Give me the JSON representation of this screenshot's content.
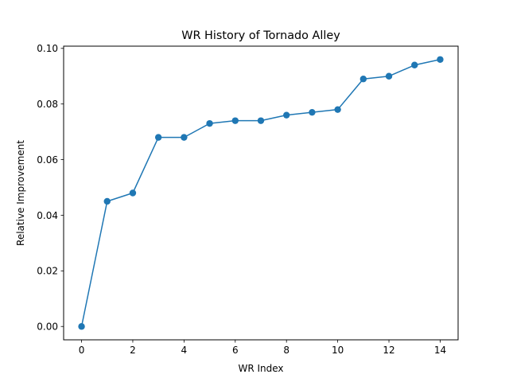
{
  "chart_data": {
    "type": "line",
    "title": "WR History of Tornado Alley",
    "xlabel": "WR Index",
    "ylabel": "Relative Improvement",
    "x": [
      0,
      1,
      2,
      3,
      4,
      5,
      6,
      7,
      8,
      9,
      10,
      11,
      12,
      13,
      14
    ],
    "series": [
      {
        "values": [
          0.0,
          0.045,
          0.048,
          0.068,
          0.068,
          0.073,
          0.074,
          0.074,
          0.076,
          0.077,
          0.078,
          0.089,
          0.09,
          0.094,
          0.096
        ],
        "color": "#1f77b4",
        "marker": "circle"
      }
    ],
    "xlim": [
      -0.7,
      14.7
    ],
    "ylim": [
      -0.0048,
      0.1008
    ],
    "xticks": [
      0,
      2,
      4,
      6,
      8,
      10,
      12,
      14
    ],
    "xtick_labels": [
      "0",
      "2",
      "4",
      "6",
      "8",
      "10",
      "12",
      "14"
    ],
    "yticks": [
      0.0,
      0.02,
      0.04,
      0.06,
      0.08,
      0.1
    ],
    "ytick_labels": [
      "0.00",
      "0.02",
      "0.04",
      "0.06",
      "0.08",
      "0.10"
    ],
    "grid": false,
    "legend": "none"
  }
}
